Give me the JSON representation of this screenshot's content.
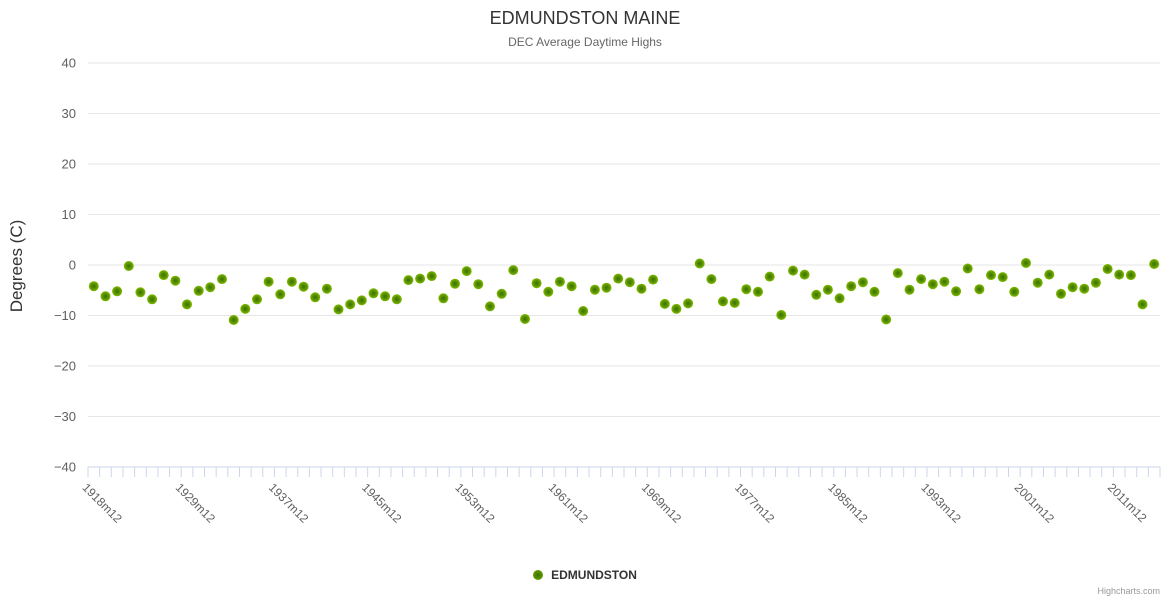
{
  "chart": {
    "title": "EDMUNDSTON MAINE",
    "subtitle": "DEC Average Daytime Highs",
    "y_axis_title": "Degrees (C)",
    "legend_label": "EDMUNDSTON",
    "credits": "Highcharts.com"
  },
  "colors": {
    "marker_edge": "#7fbc00",
    "marker_center": "#3e7000",
    "gridline": "#e6e6e6",
    "axis_tick": "#ccd6eb",
    "axis_label": "#606060",
    "title": "#333333",
    "subtitle": "#666666",
    "credits": "#999999"
  },
  "chart_data": {
    "type": "scatter",
    "title": "EDMUNDSTON MAINE",
    "subtitle": "DEC Average Daytime Highs",
    "xlabel": "",
    "ylabel": "Degrees (C)",
    "ylim": [
      -40,
      40
    ],
    "y_ticks": [
      40,
      30,
      20,
      10,
      0,
      -10,
      -20,
      -30,
      -40
    ],
    "grid": "horizontal",
    "legend_position": "bottom-center",
    "series_name": "EDMUNDSTON",
    "num_points": 92,
    "x_tick_labels": [
      "1918m12",
      "1929m12",
      "1937m12",
      "1945m12",
      "1953m12",
      "1961m12",
      "1969m12",
      "1977m12",
      "1985m12",
      "1993m12",
      "2001m12",
      "2011m12"
    ],
    "x_tick_label_positions": [
      0,
      8,
      16,
      24,
      32,
      40,
      48,
      56,
      64,
      72,
      80,
      88
    ],
    "values": [
      -4.2,
      -6.2,
      -5.2,
      -0.2,
      -5.4,
      -6.8,
      -2.0,
      -3.1,
      -7.8,
      -5.1,
      -4.4,
      -2.8,
      -10.9,
      -8.7,
      -6.8,
      -3.3,
      -5.8,
      -3.3,
      -4.3,
      -6.4,
      -4.7,
      -8.8,
      -7.8,
      -7.0,
      -5.6,
      -6.2,
      -6.8,
      -3.0,
      -2.7,
      -2.2,
      -6.6,
      -3.7,
      -1.2,
      -3.8,
      -8.2,
      -5.7,
      -1.0,
      -10.7,
      -3.6,
      -5.3,
      -3.3,
      -4.2,
      -9.1,
      -4.9,
      -4.5,
      -2.7,
      -3.4,
      -4.7,
      -2.9,
      -7.7,
      -8.7,
      -7.6,
      0.3,
      -2.8,
      -7.2,
      -7.5,
      -4.8,
      -5.3,
      -2.3,
      -9.9,
      -1.1,
      -1.9,
      -5.9,
      -4.9,
      -6.6,
      -4.2,
      -3.4,
      -5.3,
      -10.8,
      -1.6,
      -4.9,
      -2.8,
      -3.8,
      -3.3,
      -5.2,
      -0.7,
      -4.8,
      -2.0,
      -2.4,
      -5.3,
      0.4,
      -3.5,
      -1.9,
      -5.7,
      -4.4,
      -4.7,
      -3.5,
      -0.8,
      -1.9,
      -2.0,
      -7.8,
      0.2
    ]
  }
}
